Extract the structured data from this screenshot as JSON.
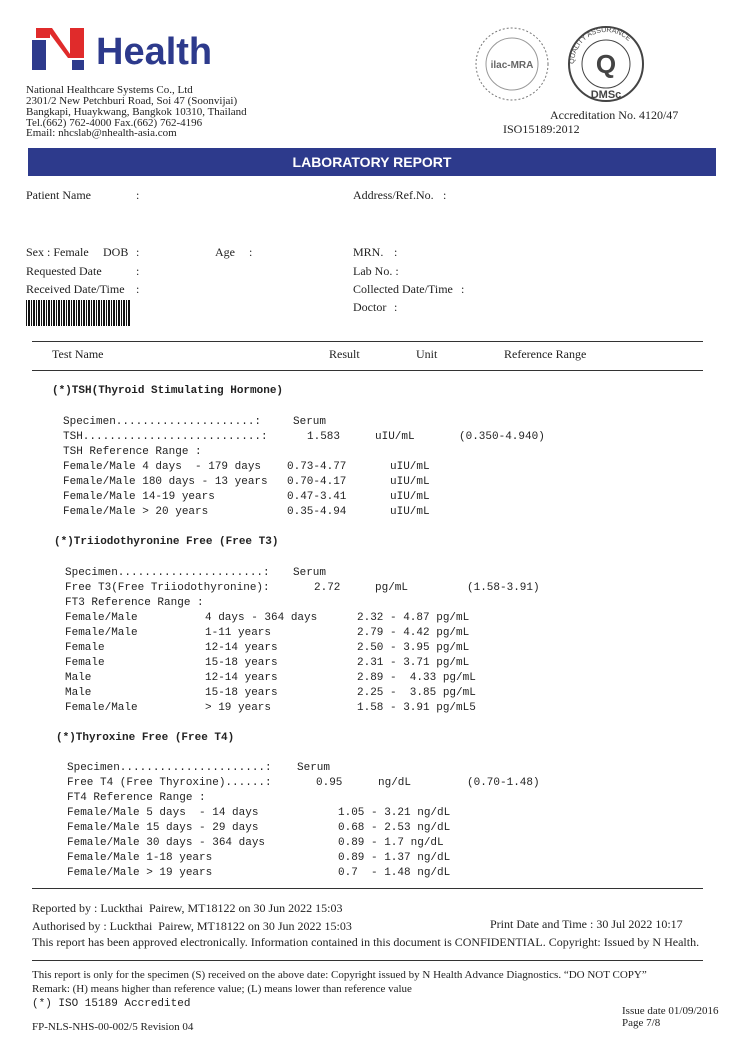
{
  "header": {
    "logo": "Health",
    "company": [
      "National Healthcare Systems Co., Ltd",
      "2301/2 New Petchburi Road, Soi 47 (Soonvijai)",
      "Bangkapi, Huaykwang, Bangkok 10310, Thailand",
      "Tel.(662) 762-4000 Fax.(662) 762-4196",
      "Email: nhcslab@nhealth-asia.com"
    ],
    "seal": {
      "ilac": "ilac-MRA",
      "quality": "QUALITY ASSURANCE",
      "q": "Q",
      "dmsc": "DMSc"
    },
    "accreditation": "Accreditation No. 4120/47",
    "iso": "ISO15189:2012"
  },
  "title": "LABORATORY REPORT",
  "patient": {
    "name": "Patient Name",
    "address": "Address/Ref.No.",
    "sex": "Sex : Female",
    "dob": "DOB",
    "age": "Age",
    "mrn": "MRN.",
    "requested": "Requested Date",
    "lab_no": "Lab No. :",
    "received": "Received Date/Time",
    "collected": "Collected Date/Time",
    "doctor": "Doctor",
    "colon": ":"
  },
  "table_header": [
    "Test Name",
    "Result",
    "Unit",
    "Reference Range"
  ],
  "sections": [
    {
      "title": "(*)TSH(Thyroid Stimulating Hormone)",
      "rows": [
        [
          "Specimen.....................:",
          "Serum"
        ],
        [
          "TSH...........................:",
          "1.583",
          "uIU/mL",
          "(0.350-4.940)"
        ],
        [
          "TSH Reference Range :"
        ],
        [
          "Female/Male 4 days  - 179 days",
          "0.73-4.77",
          "uIU/mL"
        ],
        [
          "Female/Male 180 days - 13 years",
          "0.70-4.17",
          "uIU/mL"
        ],
        [
          "Female/Male 14-19 years",
          "0.47-3.41",
          "uIU/mL"
        ],
        [
          "Female/Male > 20 years",
          "0.35-4.94",
          "uIU/mL"
        ]
      ]
    },
    {
      "title": "(*)Triiodothyronine Free (Free T3)",
      "rows": [
        [
          "Specimen......................:",
          "Serum"
        ],
        [
          "Free T3(Free Triiodothyronine):",
          "2.72",
          "pg/mL",
          "(1.58-3.91)"
        ],
        [
          "FT3 Reference Range :"
        ],
        [
          "Female/Male",
          "4 days - 364 days",
          "2.32 - 4.87 pg/mL"
        ],
        [
          "Female/Male",
          "1-11 years",
          "2.79 - 4.42 pg/mL"
        ],
        [
          "Female",
          "12-14 years",
          "2.50 - 3.95 pg/mL"
        ],
        [
          "Female",
          "15-18 years",
          "2.31 - 3.71 pg/mL"
        ],
        [
          "Male",
          "12-14 years",
          "2.89 -  4.33 pg/mL"
        ],
        [
          "Male",
          "15-18 years",
          "2.25 -  3.85 pg/mL"
        ],
        [
          "Female/Male",
          "> 19 years",
          "1.58 - 3.91 pg/mL5"
        ]
      ]
    },
    {
      "title": "(*)Thyroxine Free (Free T4)",
      "rows": [
        [
          "Specimen......................:",
          "Serum"
        ],
        [
          "Free T4 (Free Thyroxine)......:",
          "0.95",
          "ng/dL",
          "(0.70-1.48)"
        ],
        [
          "FT4 Reference Range :"
        ],
        [
          "Female/Male 5 days  - 14 days",
          "1.05 - 3.21 ng/dL"
        ],
        [
          "Female/Male 15 days - 29 days",
          "0.68 - 2.53 ng/dL"
        ],
        [
          "Female/Male 30 days - 364 days",
          "0.89 - 1.7 ng/dL"
        ],
        [
          "Female/Male 1-18 years",
          "0.89 - 1.37 ng/dL"
        ],
        [
          "Female/Male > 19 years",
          "0.7  - 1.48 ng/dL"
        ]
      ]
    }
  ],
  "footer": {
    "reported": "Reported by : Luckthai  Pairew, MT18122 on 30 Jun 2022 15:03",
    "authorised": "Authorised by : Luckthai  Pairew, MT18122 on 30 Jun 2022 15:03",
    "print_date": "Print Date and Time : 30 Jul 2022 10:17",
    "approved": "This report has been approved electronically. Information contained in this document is CONFIDENTIAL. Copyright: Issued by N Health.",
    "notice": "This report is only for the specimen (S) received on the above date: Copyright issued by N Health Advance Diagnostics. “DO NOT COPY”",
    "remark": "Remark: (H) means higher than reference value; (L) means lower than reference value",
    "iso_note": "(*) ISO 15189 Accredited",
    "issue_date": "Issue date 01/09/2016",
    "page": "Page 7/8",
    "form": "FP-NLS-NHS-00-002/5 Revision 04"
  }
}
